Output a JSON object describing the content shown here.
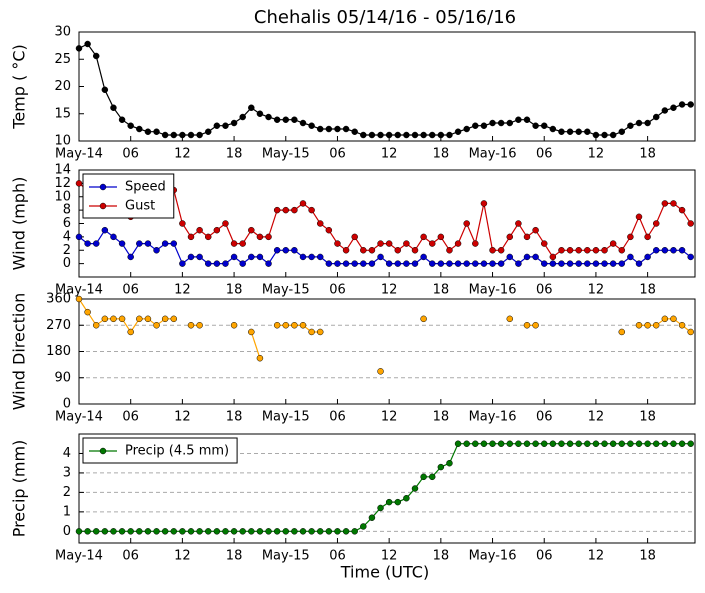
{
  "chart_data": [
    {
      "type": "line",
      "title": "Chehalis 05/14/16 - 05/16/16",
      "ylabel": "Temp ( °C)",
      "color": "#000000",
      "grid": false,
      "x": [
        0,
        1,
        2,
        3,
        4,
        5,
        6,
        7,
        8,
        9,
        10,
        11,
        12,
        13,
        14,
        15,
        16,
        17,
        18,
        19,
        20,
        21,
        22,
        23,
        24,
        25,
        26,
        27,
        28,
        29,
        30,
        31,
        32,
        33,
        34,
        35,
        36,
        37,
        38,
        39,
        40,
        41,
        42,
        43,
        44,
        45,
        46,
        47,
        48,
        49,
        50,
        51,
        52,
        53,
        54,
        55,
        56,
        57,
        58,
        59,
        60,
        61,
        62,
        63,
        64,
        65,
        66,
        67,
        68,
        69,
        70,
        71
      ],
      "values": [
        27,
        27.8,
        25.6,
        19.4,
        16.1,
        13.9,
        12.8,
        12.2,
        11.7,
        11.7,
        11.1,
        11.1,
        11.1,
        11.1,
        11.1,
        11.7,
        12.8,
        12.8,
        13.3,
        14.4,
        16.1,
        15,
        14.4,
        13.9,
        13.9,
        13.9,
        13.3,
        12.8,
        12.2,
        12.2,
        12.2,
        12.2,
        11.7,
        11.1,
        11.1,
        11.1,
        11.1,
        11.1,
        11.1,
        11.1,
        11.1,
        11.1,
        11.1,
        11.1,
        11.7,
        12.2,
        12.8,
        12.8,
        13.3,
        13.3,
        13.3,
        13.9,
        13.9,
        12.8,
        12.8,
        12.2,
        11.7,
        11.7,
        11.7,
        11.7,
        11.1,
        11.1,
        11.1,
        11.7,
        12.8,
        13.3,
        13.3,
        14.4,
        15.6,
        16.1,
        16.7,
        16.7
      ],
      "xlim": [
        0,
        71.5
      ],
      "ylim": [
        10,
        30
      ],
      "yticks": [
        10,
        15,
        20,
        25,
        30
      ],
      "xticks": [
        {
          "value": 0,
          "label": "May-14"
        },
        {
          "value": 6,
          "label": "06"
        },
        {
          "value": 12,
          "label": "12"
        },
        {
          "value": 18,
          "label": "18"
        },
        {
          "value": 24,
          "label": "May-15"
        },
        {
          "value": 30,
          "label": "06"
        },
        {
          "value": 36,
          "label": "12"
        },
        {
          "value": 42,
          "label": "18"
        },
        {
          "value": 48,
          "label": "May-16"
        },
        {
          "value": 54,
          "label": "06"
        },
        {
          "value": 60,
          "label": "12"
        },
        {
          "value": 66,
          "label": "18"
        }
      ]
    },
    {
      "type": "line",
      "ylabel": "Wind (mph)",
      "grid": false,
      "legend": "upper left",
      "x": [
        0,
        1,
        2,
        3,
        4,
        5,
        6,
        7,
        8,
        9,
        10,
        11,
        12,
        13,
        14,
        15,
        16,
        17,
        18,
        19,
        20,
        21,
        22,
        23,
        24,
        25,
        26,
        27,
        28,
        29,
        30,
        31,
        32,
        33,
        34,
        35,
        36,
        37,
        38,
        39,
        40,
        41,
        42,
        43,
        44,
        45,
        46,
        47,
        48,
        49,
        50,
        51,
        52,
        53,
        54,
        55,
        56,
        57,
        58,
        59,
        60,
        61,
        62,
        63,
        64,
        65,
        66,
        67,
        68,
        69,
        70,
        71
      ],
      "series": [
        {
          "name": "Speed",
          "color": "#0000cc",
          "values": [
            4,
            3,
            3,
            5,
            4,
            3,
            1,
            3,
            3,
            2,
            3,
            3,
            0,
            1,
            1,
            0,
            0,
            0,
            1,
            0,
            1,
            1,
            0,
            2,
            2,
            2,
            1,
            1,
            1,
            0,
            0,
            0,
            0,
            0,
            0,
            1,
            0,
            0,
            0,
            0,
            1,
            0,
            0,
            0,
            0,
            0,
            0,
            0,
            0,
            0,
            1,
            0,
            1,
            1,
            0,
            0,
            0,
            0,
            0,
            0,
            0,
            0,
            0,
            0,
            1,
            0,
            1,
            2,
            2,
            2,
            2,
            1
          ]
        },
        {
          "name": "Gust",
          "color": "#cc0000",
          "values": [
            12,
            11,
            10,
            10,
            10,
            9,
            7,
            9,
            9,
            8,
            9,
            11,
            6,
            4,
            5,
            4,
            5,
            6,
            3,
            3,
            5,
            4,
            4,
            8,
            8,
            8,
            9,
            8,
            6,
            5,
            3,
            2,
            4,
            2,
            2,
            3,
            3,
            2,
            3,
            2,
            4,
            3,
            4,
            2,
            3,
            6,
            3,
            9,
            2,
            2,
            4,
            6,
            4,
            5,
            3,
            1,
            2,
            2,
            2,
            2,
            2,
            2,
            3,
            2,
            4,
            7,
            4,
            6,
            9,
            9,
            8,
            6
          ]
        }
      ],
      "xlim": [
        0,
        71.5
      ],
      "ylim": [
        -2,
        14
      ],
      "yticks": [
        0,
        2,
        4,
        6,
        8,
        10,
        12,
        14
      ],
      "xticks": [
        {
          "value": 0,
          "label": "May-14"
        },
        {
          "value": 6,
          "label": "06"
        },
        {
          "value": 12,
          "label": "12"
        },
        {
          "value": 18,
          "label": "18"
        },
        {
          "value": 24,
          "label": "May-15"
        },
        {
          "value": 30,
          "label": "06"
        },
        {
          "value": 36,
          "label": "12"
        },
        {
          "value": 42,
          "label": "18"
        },
        {
          "value": 48,
          "label": "May-16"
        },
        {
          "value": 54,
          "label": "06"
        },
        {
          "value": 60,
          "label": "12"
        },
        {
          "value": 66,
          "label": "18"
        }
      ]
    },
    {
      "type": "line",
      "ylabel": "Wind Direction",
      "color": "#ffa500",
      "grid": true,
      "x": [
        0,
        1,
        2,
        3,
        4,
        5,
        6,
        7,
        8,
        9,
        10,
        11,
        12,
        13,
        14,
        15,
        16,
        17,
        18,
        19,
        20,
        21,
        22,
        23,
        24,
        25,
        26,
        27,
        28,
        29,
        30,
        31,
        32,
        33,
        34,
        35,
        36,
        37,
        38,
        39,
        40,
        41,
        42,
        43,
        44,
        45,
        46,
        47,
        48,
        49,
        50,
        51,
        52,
        53,
        54,
        55,
        56,
        57,
        58,
        59,
        60,
        61,
        62,
        63,
        64,
        65,
        66,
        67,
        68,
        69,
        70,
        71
      ],
      "values": [
        360,
        315,
        270,
        292,
        292,
        292,
        247,
        292,
        292,
        270,
        292,
        292,
        null,
        270,
        270,
        null,
        null,
        null,
        270,
        null,
        247,
        157,
        null,
        270,
        270,
        270,
        270,
        247,
        247,
        null,
        null,
        null,
        null,
        null,
        null,
        112,
        null,
        null,
        null,
        null,
        292,
        null,
        null,
        null,
        null,
        null,
        null,
        null,
        null,
        null,
        292,
        null,
        270,
        270,
        null,
        null,
        null,
        null,
        null,
        null,
        null,
        null,
        null,
        247,
        null,
        270,
        270,
        270,
        292,
        292,
        270,
        247
      ],
      "xlim": [
        0,
        71.5
      ],
      "ylim": [
        0,
        360
      ],
      "yticks": [
        0,
        90,
        180,
        270,
        360
      ],
      "xticks": [
        {
          "value": 0,
          "label": "May-14"
        },
        {
          "value": 6,
          "label": "06"
        },
        {
          "value": 12,
          "label": "12"
        },
        {
          "value": 18,
          "label": "18"
        },
        {
          "value": 24,
          "label": "May-15"
        },
        {
          "value": 30,
          "label": "06"
        },
        {
          "value": 36,
          "label": "12"
        },
        {
          "value": 42,
          "label": "18"
        },
        {
          "value": 48,
          "label": "May-16"
        },
        {
          "value": 54,
          "label": "06"
        },
        {
          "value": 60,
          "label": "12"
        },
        {
          "value": 66,
          "label": "18"
        }
      ]
    },
    {
      "type": "line",
      "ylabel": "Precip (mm)",
      "xlabel": "Time (UTC)",
      "grid": true,
      "legend": "upper left",
      "x": [
        0,
        1,
        2,
        3,
        4,
        5,
        6,
        7,
        8,
        9,
        10,
        11,
        12,
        13,
        14,
        15,
        16,
        17,
        18,
        19,
        20,
        21,
        22,
        23,
        24,
        25,
        26,
        27,
        28,
        29,
        30,
        31,
        32,
        33,
        34,
        35,
        36,
        37,
        38,
        39,
        40,
        41,
        42,
        43,
        44,
        45,
        46,
        47,
        48,
        49,
        50,
        51,
        52,
        53,
        54,
        55,
        56,
        57,
        58,
        59,
        60,
        61,
        62,
        63,
        64,
        65,
        66,
        67,
        68,
        69,
        70,
        71
      ],
      "series": [
        {
          "name": "Precip (4.5 mm)",
          "color": "#007700",
          "values": [
            0,
            0,
            0,
            0,
            0,
            0,
            0,
            0,
            0,
            0,
            0,
            0,
            0,
            0,
            0,
            0,
            0,
            0,
            0,
            0,
            0,
            0,
            0,
            0,
            0,
            0,
            0,
            0,
            0,
            0,
            0,
            0,
            0,
            0.25,
            0.7,
            1.2,
            1.5,
            1.5,
            1.7,
            2.2,
            2.8,
            2.8,
            3.3,
            3.5,
            4.5,
            4.5,
            4.5,
            4.5,
            4.5,
            4.5,
            4.5,
            4.5,
            4.5,
            4.5,
            4.5,
            4.5,
            4.5,
            4.5,
            4.5,
            4.5,
            4.5,
            4.5,
            4.5,
            4.5,
            4.5,
            4.5,
            4.5,
            4.5,
            4.5,
            4.5,
            4.5,
            4.5
          ]
        }
      ],
      "xlim": [
        0,
        71.5
      ],
      "ylim": [
        -0.6,
        5
      ],
      "yticks": [
        0,
        1,
        2,
        3,
        4
      ],
      "xticks": [
        {
          "value": 0,
          "label": "May-14"
        },
        {
          "value": 6,
          "label": "06"
        },
        {
          "value": 12,
          "label": "12"
        },
        {
          "value": 18,
          "label": "18"
        },
        {
          "value": 24,
          "label": "May-15"
        },
        {
          "value": 30,
          "label": "06"
        },
        {
          "value": 36,
          "label": "12"
        },
        {
          "value": 42,
          "label": "18"
        },
        {
          "value": 48,
          "label": "May-16"
        },
        {
          "value": 54,
          "label": "06"
        },
        {
          "value": 60,
          "label": "12"
        },
        {
          "value": 66,
          "label": "18"
        }
      ]
    }
  ]
}
